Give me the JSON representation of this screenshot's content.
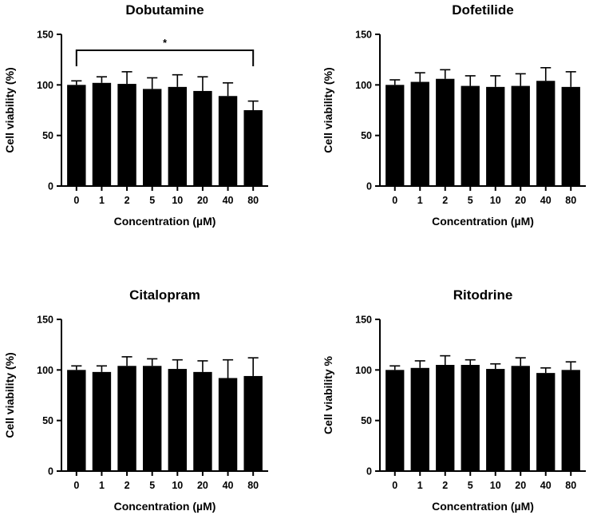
{
  "chart_data": [
    {
      "type": "bar",
      "title": "Dobutamine",
      "xlabel": "Concentration (µM)",
      "ylabel": "Cell viability (%)",
      "categories": [
        "0",
        "1",
        "2",
        "5",
        "10",
        "20",
        "40",
        "80"
      ],
      "values": [
        100,
        102,
        101,
        96,
        98,
        94,
        89,
        75
      ],
      "errors": [
        4,
        6,
        12,
        11,
        12,
        14,
        13,
        9
      ],
      "ylim": [
        0,
        150
      ],
      "yticks": [
        "0",
        "50",
        "100",
        "150"
      ],
      "significance": {
        "from": "0",
        "to": "80",
        "label": "*"
      },
      "grid": false,
      "color": "#000000"
    },
    {
      "type": "bar",
      "title": "Dofetilide",
      "xlabel": "Concentration (µM)",
      "ylabel": "Cell viability (%)",
      "categories": [
        "0",
        "1",
        "2",
        "5",
        "10",
        "20",
        "40",
        "80"
      ],
      "values": [
        100,
        103,
        106,
        99,
        98,
        99,
        104,
        98
      ],
      "errors": [
        5,
        9,
        9,
        10,
        11,
        12,
        13,
        15
      ],
      "ylim": [
        0,
        150
      ],
      "yticks": [
        "0",
        "50",
        "100",
        "150"
      ],
      "grid": false,
      "color": "#000000"
    },
    {
      "type": "bar",
      "title": "Citalopram",
      "xlabel": "Concentration (µM)",
      "ylabel": "Cell viability (%)",
      "categories": [
        "0",
        "1",
        "2",
        "5",
        "10",
        "20",
        "40",
        "80"
      ],
      "values": [
        100,
        98,
        104,
        104,
        101,
        98,
        92,
        94
      ],
      "errors": [
        4,
        6,
        9,
        7,
        9,
        11,
        18,
        18
      ],
      "ylim": [
        0,
        150
      ],
      "yticks": [
        "0",
        "50",
        "100",
        "150"
      ],
      "grid": false,
      "color": "#000000"
    },
    {
      "type": "bar",
      "title": "Ritodrine",
      "xlabel": "Concentration (µM)",
      "ylabel": "Cell viability %",
      "categories": [
        "0",
        "1",
        "2",
        "5",
        "10",
        "20",
        "40",
        "80"
      ],
      "values": [
        100,
        102,
        105,
        105,
        101,
        104,
        97,
        100
      ],
      "errors": [
        4,
        7,
        9,
        5,
        5,
        8,
        5,
        8
      ],
      "ylim": [
        0,
        150
      ],
      "yticks": [
        "0",
        "50",
        "100",
        "150"
      ],
      "grid": false,
      "color": "#000000"
    }
  ]
}
